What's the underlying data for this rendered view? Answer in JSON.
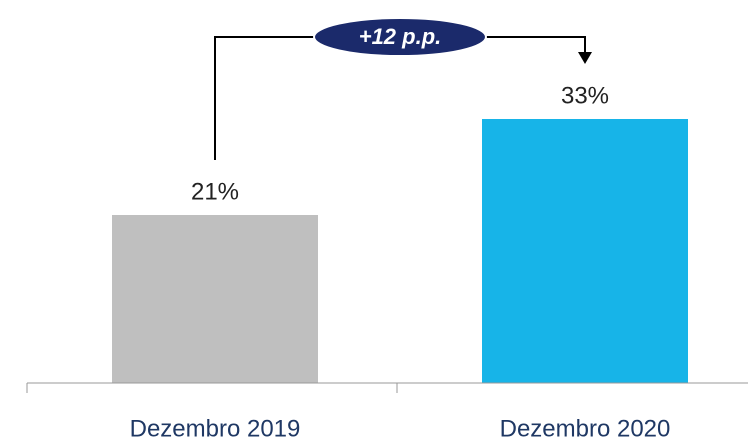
{
  "chart_data": {
    "type": "bar",
    "categories": [
      "Dezembro 2019",
      "Dezembro 2020"
    ],
    "values": [
      21,
      33
    ],
    "value_labels": [
      "21%",
      "33%"
    ],
    "colors": [
      "#bfbfbf",
      "#17b4e8"
    ],
    "annotation": "+12 p.p."
  }
}
